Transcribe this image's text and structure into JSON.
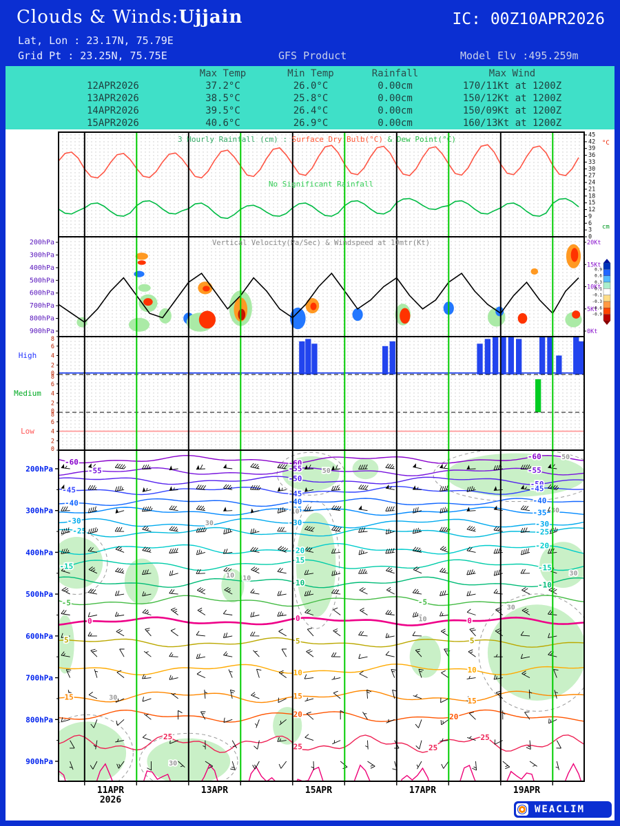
{
  "theme": {
    "banner_blue": "#0b2fd2",
    "table_teal": "#3fe0c8",
    "day_line_green": "#00cc00",
    "day_line_black": "#000000"
  },
  "header": {
    "title_left": "Clouds & Winds:",
    "station": "Ujjain",
    "ic": "IC: 00Z10APR2026",
    "latlon": "Lat, Lon : 23.17N, 75.79E",
    "gridpt": "Grid Pt  : 23.25N, 75.75E",
    "product": "GFS Product",
    "model_elv": "Model Elv :495.259m"
  },
  "summary_table": {
    "columns": [
      "Max Temp",
      "Min Temp",
      "Rainfall",
      "Max Wind"
    ],
    "rows": [
      {
        "date": "12APR2026",
        "max_temp": "37.2°C",
        "min_temp": "26.0°C",
        "rainfall": "0.00cm",
        "max_wind": "170/11Kt at 1200Z"
      },
      {
        "date": "13APR2026",
        "max_temp": "38.5°C",
        "min_temp": "25.8°C",
        "rainfall": "0.00cm",
        "max_wind": "150/12Kt at 1200Z"
      },
      {
        "date": "14APR2026",
        "max_temp": "39.5°C",
        "min_temp": "26.4°C",
        "rainfall": "0.00cm",
        "max_wind": "150/09Kt at 1200Z"
      },
      {
        "date": "15APR2026",
        "max_temp": "40.6°C",
        "min_temp": "26.9°C",
        "rainfall": "0.00cm",
        "max_wind": "160/13Kt at 1200Z"
      }
    ]
  },
  "time_axis": {
    "days_total": 10.106,
    "black_lines_days": [
      0.5,
      2.5,
      4.5,
      6.5,
      8.5
    ],
    "green_lines_days": [
      1.5,
      3.5,
      5.5,
      7.5,
      9.5
    ],
    "labels": [
      {
        "text": "11APR",
        "sub": "2026",
        "t": 1.0
      },
      {
        "text": "13APR",
        "t": 3.0
      },
      {
        "text": "15APR",
        "t": 5.0
      },
      {
        "text": "17APR",
        "t": 7.0
      },
      {
        "text": "19APR",
        "t": 9.0
      }
    ]
  },
  "chart_data": [
    {
      "id": "surface-panel",
      "type": "line",
      "title_parts": [
        {
          "text": "3 Hourly Rainfall (cm) :",
          "color": "#33aa66"
        },
        {
          "text": " Surface Dry Bulb(°C)",
          "color": "#ff5533"
        },
        {
          "text": "   & Dew Point(°C)",
          "color": "#22bb44"
        }
      ],
      "annotation": {
        "text": "No Significant Rainfall",
        "color": "#33cc55"
      },
      "ylim": [
        0,
        45
      ],
      "ytick_step": 3,
      "unit_top": "°C",
      "unit_bottom": "cm",
      "rainfall_3hourly_cm": 0,
      "dry_bulb": {
        "color": "#ff5544",
        "daily_max_c": [
          37.6,
          37.0,
          37.2,
          38.5,
          39.5,
          40.6,
          40.2,
          40.0,
          40.9,
          40.3,
          39.8
        ],
        "daily_min_c": [
          26.5,
          25.8,
          26.0,
          25.8,
          26.4,
          26.9,
          27.2,
          26.8,
          27.0,
          27.2,
          26.8
        ]
      },
      "dew_point": {
        "color": "#00bb44",
        "daily_max_c": [
          16,
          15,
          16,
          15,
          14,
          15,
          16,
          17,
          16,
          15,
          17
        ],
        "daily_min_c": [
          10,
          9,
          10,
          8,
          9,
          9,
          10,
          12,
          10,
          9,
          11
        ]
      }
    },
    {
      "id": "vertical-velocity-panel",
      "type": "shaded-contour+line",
      "title": "Vertical Velocity(Pa/Sec) & Windspeed at 10mtr(Kt)",
      "pressure_ticks": [
        "200hPa",
        "300hPa",
        "400hPa",
        "500hPa",
        "600hPa",
        "700hPa",
        "800hPa",
        "900hPa"
      ],
      "wind_ticks": [
        "20Kt",
        "15Kt",
        "10Kt",
        "5Kt",
        "0Kt"
      ],
      "wind_max_kt": 20,
      "windspeed_t_step_days": 0.25,
      "windspeed_10m_kt": [
        6,
        4,
        2,
        5,
        9,
        12,
        8,
        4,
        3,
        7,
        11,
        13,
        9,
        5,
        8,
        12,
        9,
        5,
        3,
        6,
        10,
        13,
        9,
        5,
        7,
        10,
        12,
        8,
        5,
        7,
        11,
        13,
        9,
        6,
        4,
        8,
        11,
        7,
        4,
        9,
        12
      ],
      "palette": {
        "green": "#aaeaa6",
        "blue": "#2277ff",
        "orange": "#ff9922",
        "red": "#ff3300",
        "dred": "#c81400"
      },
      "vv_cells": [
        {
          "t": 0.45,
          "p": 830,
          "rt": 0.1,
          "rp": 40,
          "c": "green"
        },
        {
          "t": 1.6,
          "p": 310,
          "rt": 0.12,
          "rp": 28,
          "c": "orange"
        },
        {
          "t": 1.6,
          "p": 360,
          "rt": 0.08,
          "rp": 18,
          "c": "red"
        },
        {
          "t": 1.55,
          "p": 450,
          "rt": 0.1,
          "rp": 25,
          "c": "blue"
        },
        {
          "t": 1.65,
          "p": 560,
          "rt": 0.12,
          "rp": 30,
          "c": "green"
        },
        {
          "t": 1.72,
          "p": 680,
          "rt": 0.18,
          "rp": 70,
          "c": "green"
        },
        {
          "t": 1.72,
          "p": 670,
          "rt": 0.09,
          "rp": 30,
          "c": "red"
        },
        {
          "t": 1.55,
          "p": 850,
          "rt": 0.2,
          "rp": 55,
          "c": "green"
        },
        {
          "t": 2.05,
          "p": 780,
          "rt": 0.12,
          "rp": 60,
          "c": "green"
        },
        {
          "t": 2.5,
          "p": 800,
          "rt": 0.1,
          "rp": 45,
          "c": "blue"
        },
        {
          "t": 2.82,
          "p": 560,
          "rt": 0.14,
          "rp": 50,
          "c": "orange"
        },
        {
          "t": 2.84,
          "p": 565,
          "rt": 0.07,
          "rp": 22,
          "c": "red"
        },
        {
          "t": 2.72,
          "p": 830,
          "rt": 0.26,
          "rp": 75,
          "c": "green"
        },
        {
          "t": 2.86,
          "p": 810,
          "rt": 0.16,
          "rp": 70,
          "c": "red"
        },
        {
          "t": 3.5,
          "p": 720,
          "rt": 0.22,
          "rp": 140,
          "c": "green"
        },
        {
          "t": 3.5,
          "p": 730,
          "rt": 0.13,
          "rp": 95,
          "c": "orange"
        },
        {
          "t": 3.52,
          "p": 770,
          "rt": 0.07,
          "rp": 45,
          "c": "dred"
        },
        {
          "t": 4.6,
          "p": 800,
          "rt": 0.15,
          "rp": 85,
          "c": "blue"
        },
        {
          "t": 4.88,
          "p": 700,
          "rt": 0.13,
          "rp": 60,
          "c": "orange"
        },
        {
          "t": 4.9,
          "p": 705,
          "rt": 0.06,
          "rp": 30,
          "c": "red"
        },
        {
          "t": 5.75,
          "p": 770,
          "rt": 0.1,
          "rp": 50,
          "c": "blue"
        },
        {
          "t": 6.62,
          "p": 770,
          "rt": 0.15,
          "rp": 85,
          "c": "green"
        },
        {
          "t": 6.66,
          "p": 780,
          "rt": 0.1,
          "rp": 62,
          "c": "red"
        },
        {
          "t": 7.5,
          "p": 720,
          "rt": 0.1,
          "rp": 52,
          "c": "blue"
        },
        {
          "t": 8.42,
          "p": 790,
          "rt": 0.17,
          "rp": 75,
          "c": "green"
        },
        {
          "t": 8.48,
          "p": 745,
          "rt": 0.08,
          "rp": 38,
          "c": "blue"
        },
        {
          "t": 8.92,
          "p": 800,
          "rt": 0.09,
          "rp": 42,
          "c": "red"
        },
        {
          "t": 9.15,
          "p": 430,
          "rt": 0.07,
          "rp": 25,
          "c": "orange"
        },
        {
          "t": 9.9,
          "p": 310,
          "rt": 0.14,
          "rp": 95,
          "c": "orange"
        },
        {
          "t": 9.92,
          "p": 300,
          "rt": 0.07,
          "rp": 55,
          "c": "red"
        },
        {
          "t": 9.9,
          "p": 810,
          "rt": 0.16,
          "rp": 60,
          "c": "green"
        },
        {
          "t": 9.95,
          "p": 770,
          "rt": 0.08,
          "rp": 32,
          "c": "red"
        }
      ],
      "colorbar": {
        "values": [
          0.9,
          0.6,
          0.3,
          0.1,
          -0.1,
          -0.3,
          -0.6,
          -0.9
        ],
        "colors": [
          "#0033bb",
          "#2266ff",
          "#55bbff",
          "#aaeecc",
          "#ffffff",
          "#ffdd88",
          "#ff9944",
          "#ff4400",
          "#bb0000"
        ]
      }
    },
    {
      "id": "cloud-cover-panel",
      "type": "bar",
      "ylim": [
        0,
        8
      ],
      "yticks": [
        8,
        6,
        4,
        2,
        0
      ],
      "tick_color": "#bb2200",
      "groups": [
        {
          "label": "High",
          "label_color": "#2233ff",
          "bar_color": "#2244ee",
          "baseline": 0.3,
          "bars": [
            {
              "t": 4.68,
              "v": 7
            },
            {
              "t": 4.8,
              "v": 7.5
            },
            {
              "t": 4.92,
              "v": 6.5
            },
            {
              "t": 6.28,
              "v": 6
            },
            {
              "t": 6.42,
              "v": 7
            },
            {
              "t": 8.1,
              "v": 6.5
            },
            {
              "t": 8.25,
              "v": 7.5
            },
            {
              "t": 8.4,
              "v": 8
            },
            {
              "t": 8.55,
              "v": 8
            },
            {
              "t": 8.7,
              "v": 8
            },
            {
              "t": 8.85,
              "v": 7.5
            },
            {
              "t": 9.3,
              "v": 8
            },
            {
              "t": 9.45,
              "v": 8
            },
            {
              "t": 9.62,
              "v": 4
            },
            {
              "t": 9.95,
              "v": 8
            },
            {
              "t": 10.05,
              "v": 7
            }
          ]
        },
        {
          "label": "Medium",
          "label_color": "#00aa22",
          "bar_color": "#00cc22",
          "bars": [
            {
              "t": 9.22,
              "v": 7
            }
          ]
        },
        {
          "label": "Low",
          "label_color": "#ff5555",
          "line_color": "#ff9999",
          "line_value": 4,
          "bars": []
        }
      ]
    },
    {
      "id": "upper-air-panel",
      "type": "cross-section",
      "pressure_ticks": [
        "200hPa",
        "300hPa",
        "400hPa",
        "500hPa",
        "600hPa",
        "700hPa",
        "800hPa",
        "900hPa"
      ],
      "rh_shading_color": "#c9f0c7",
      "rh_contour_color": "#999999",
      "isotherms": [
        {
          "label": "-60",
          "color": "#8800cc",
          "p": 178,
          "amp": 6,
          "ts": [
            0.25,
            4.55,
            9.15
          ]
        },
        {
          "label": "-55",
          "color": "#7711dd",
          "p": 207,
          "amp": 6,
          "ts": [
            0.7,
            4.55,
            9.15
          ]
        },
        {
          "label": "-50",
          "color": "#5522ee",
          "p": 228,
          "amp": 6,
          "ts": [
            4.55,
            9.2
          ]
        },
        {
          "label": "-45",
          "color": "#3344ff",
          "p": 252,
          "amp": 6,
          "ts": [
            0.2,
            4.55,
            9.2
          ]
        },
        {
          "label": "-40",
          "color": "#1166ff",
          "p": 280,
          "amp": 6,
          "ts": [
            0.25,
            4.55,
            9.25
          ]
        },
        {
          "label": "-35",
          "color": "#0088ff",
          "p": 302,
          "amp": 6,
          "ts": [
            4.55,
            9.25
          ]
        },
        {
          "label": "-30",
          "color": "#00aaee",
          "p": 330,
          "amp": 7,
          "ts": [
            0.3,
            4.55,
            9.3
          ]
        },
        {
          "label": "-25",
          "color": "#00bbdd",
          "p": 352,
          "amp": 7,
          "ts": [
            0.4,
            9.3
          ]
        },
        {
          "label": "-20",
          "color": "#00cccc",
          "p": 392,
          "amp": 8,
          "ts": [
            4.6,
            9.3
          ]
        },
        {
          "label": "-15",
          "color": "#00cca8",
          "p": 430,
          "amp": 8,
          "ts": [
            0.15,
            4.6,
            9.35
          ]
        },
        {
          "label": "-10",
          "color": "#00bb77",
          "p": 472,
          "amp": 8,
          "ts": [
            4.6,
            9.35
          ]
        },
        {
          "label": "-5",
          "color": "#44bb44",
          "p": 516,
          "amp": 8,
          "ts": [
            0.15,
            7.0
          ]
        },
        {
          "label": "0",
          "color": "#ee0088",
          "p": 565,
          "amp": 6,
          "w": 2.6,
          "ts": [
            0.6,
            4.6,
            7.9
          ]
        },
        {
          "label": "5",
          "color": "#bba800",
          "p": 616,
          "amp": 7,
          "ts": [
            0.15,
            4.6,
            7.95
          ]
        },
        {
          "label": "10",
          "color": "#ffaa00",
          "p": 680,
          "amp": 8,
          "ts": [
            4.6,
            7.95
          ]
        },
        {
          "label": "15",
          "color": "#ff8800",
          "p": 745,
          "amp": 9,
          "ts": [
            0.2,
            4.6,
            7.95
          ]
        },
        {
          "label": "20",
          "color": "#ff5500",
          "p": 792,
          "amp": 9,
          "ts": [
            4.6,
            7.6
          ]
        },
        {
          "label": "25",
          "color": "#ee2255",
          "p": 858,
          "amp": 13,
          "period": 1.9,
          "ts": [
            2.1,
            4.6,
            7.2,
            8.2
          ]
        },
        {
          "label": "",
          "color": "#ee0077",
          "p": 955,
          "amp": 30,
          "period": 1.0,
          "ts": []
        }
      ],
      "rh_patches": [
        {
          "t": 8.8,
          "p": 215,
          "rt": 1.35,
          "rp": 52,
          "dash": true
        },
        {
          "t": 4.85,
          "p": 212,
          "rt": 0.55,
          "rp": 42,
          "dash": true
        },
        {
          "t": 5.9,
          "p": 200,
          "rt": 0.25,
          "rp": 25
        },
        {
          "t": 0.35,
          "p": 425,
          "rt": 0.5,
          "rp": 62,
          "dash": true
        },
        {
          "t": 1.6,
          "p": 470,
          "rt": 0.33,
          "rp": 55
        },
        {
          "t": 4.95,
          "p": 430,
          "rt": 0.38,
          "rp": 125,
          "dash": true
        },
        {
          "t": 3.35,
          "p": 480,
          "rt": 0.22,
          "rp": 40
        },
        {
          "t": 9.7,
          "p": 430,
          "rt": 0.45,
          "rp": 55
        },
        {
          "t": 9.2,
          "p": 640,
          "rt": 0.95,
          "rp": 115,
          "dash": true
        },
        {
          "t": 0.55,
          "p": 880,
          "rt": 0.75,
          "rp": 75,
          "dash": true
        },
        {
          "t": 2.5,
          "p": 900,
          "rt": 0.8,
          "rp": 55,
          "dash": true
        },
        {
          "t": 4.4,
          "p": 815,
          "rt": 0.28,
          "rp": 45
        },
        {
          "t": 7.05,
          "p": 650,
          "rt": 0.3,
          "rp": 50
        },
        {
          "t": 0.12,
          "p": 620,
          "rt": 0.18,
          "rp": 70
        }
      ],
      "rh_labels": [
        {
          "t": 9.75,
          "p": 172,
          "text": "50"
        },
        {
          "t": 5.15,
          "p": 205,
          "text": "50"
        },
        {
          "t": 2.9,
          "p": 330,
          "text": "30"
        },
        {
          "t": 4.55,
          "p": 302,
          "text": "10"
        },
        {
          "t": 3.3,
          "p": 455,
          "text": "10"
        },
        {
          "t": 3.62,
          "p": 462,
          "text": "10"
        },
        {
          "t": 8.7,
          "p": 532,
          "text": "30"
        },
        {
          "t": 9.9,
          "p": 450,
          "text": "30"
        },
        {
          "t": 1.05,
          "p": 748,
          "text": "30"
        },
        {
          "t": 2.2,
          "p": 905,
          "text": "30"
        },
        {
          "t": 9.55,
          "p": 300,
          "text": "30"
        },
        {
          "t": 7.0,
          "p": 560,
          "text": "10"
        }
      ],
      "wind_field": [
        {
          "p": 200,
          "dir": 272,
          "dva": 10,
          "spd": 48,
          "sva": 14
        },
        {
          "p": 250,
          "dir": 268,
          "dva": 12,
          "spd": 45,
          "sva": 12
        },
        {
          "p": 300,
          "dir": 266,
          "dva": 14,
          "spd": 40,
          "sva": 12
        },
        {
          "p": 350,
          "dir": 268,
          "dva": 16,
          "spd": 34,
          "sva": 10
        },
        {
          "p": 400,
          "dir": 272,
          "dva": 18,
          "spd": 30,
          "sva": 10
        },
        {
          "p": 450,
          "dir": 274,
          "dva": 20,
          "spd": 26,
          "sva": 8
        },
        {
          "p": 500,
          "dir": 278,
          "dva": 22,
          "spd": 22,
          "sva": 8
        },
        {
          "p": 550,
          "dir": 282,
          "dva": 26,
          "spd": 18,
          "sva": 7
        },
        {
          "p": 600,
          "dir": 288,
          "dva": 30,
          "spd": 15,
          "sva": 6
        },
        {
          "p": 650,
          "dir": 294,
          "dva": 36,
          "spd": 13,
          "sva": 6
        },
        {
          "p": 700,
          "dir": 300,
          "dva": 46,
          "spd": 11,
          "sva": 5
        },
        {
          "p": 750,
          "dir": 300,
          "dva": 60,
          "spd": 10,
          "sva": 5
        },
        {
          "p": 800,
          "dir": 280,
          "dva": 80,
          "spd": 9,
          "sva": 4
        },
        {
          "p": 850,
          "dir": 220,
          "dva": 70,
          "spd": 9,
          "sva": 4
        },
        {
          "p": 900,
          "dir": 170,
          "dva": 50,
          "spd": 10,
          "sva": 4
        }
      ]
    }
  ],
  "footer": {
    "brand": "WEACLIM"
  }
}
